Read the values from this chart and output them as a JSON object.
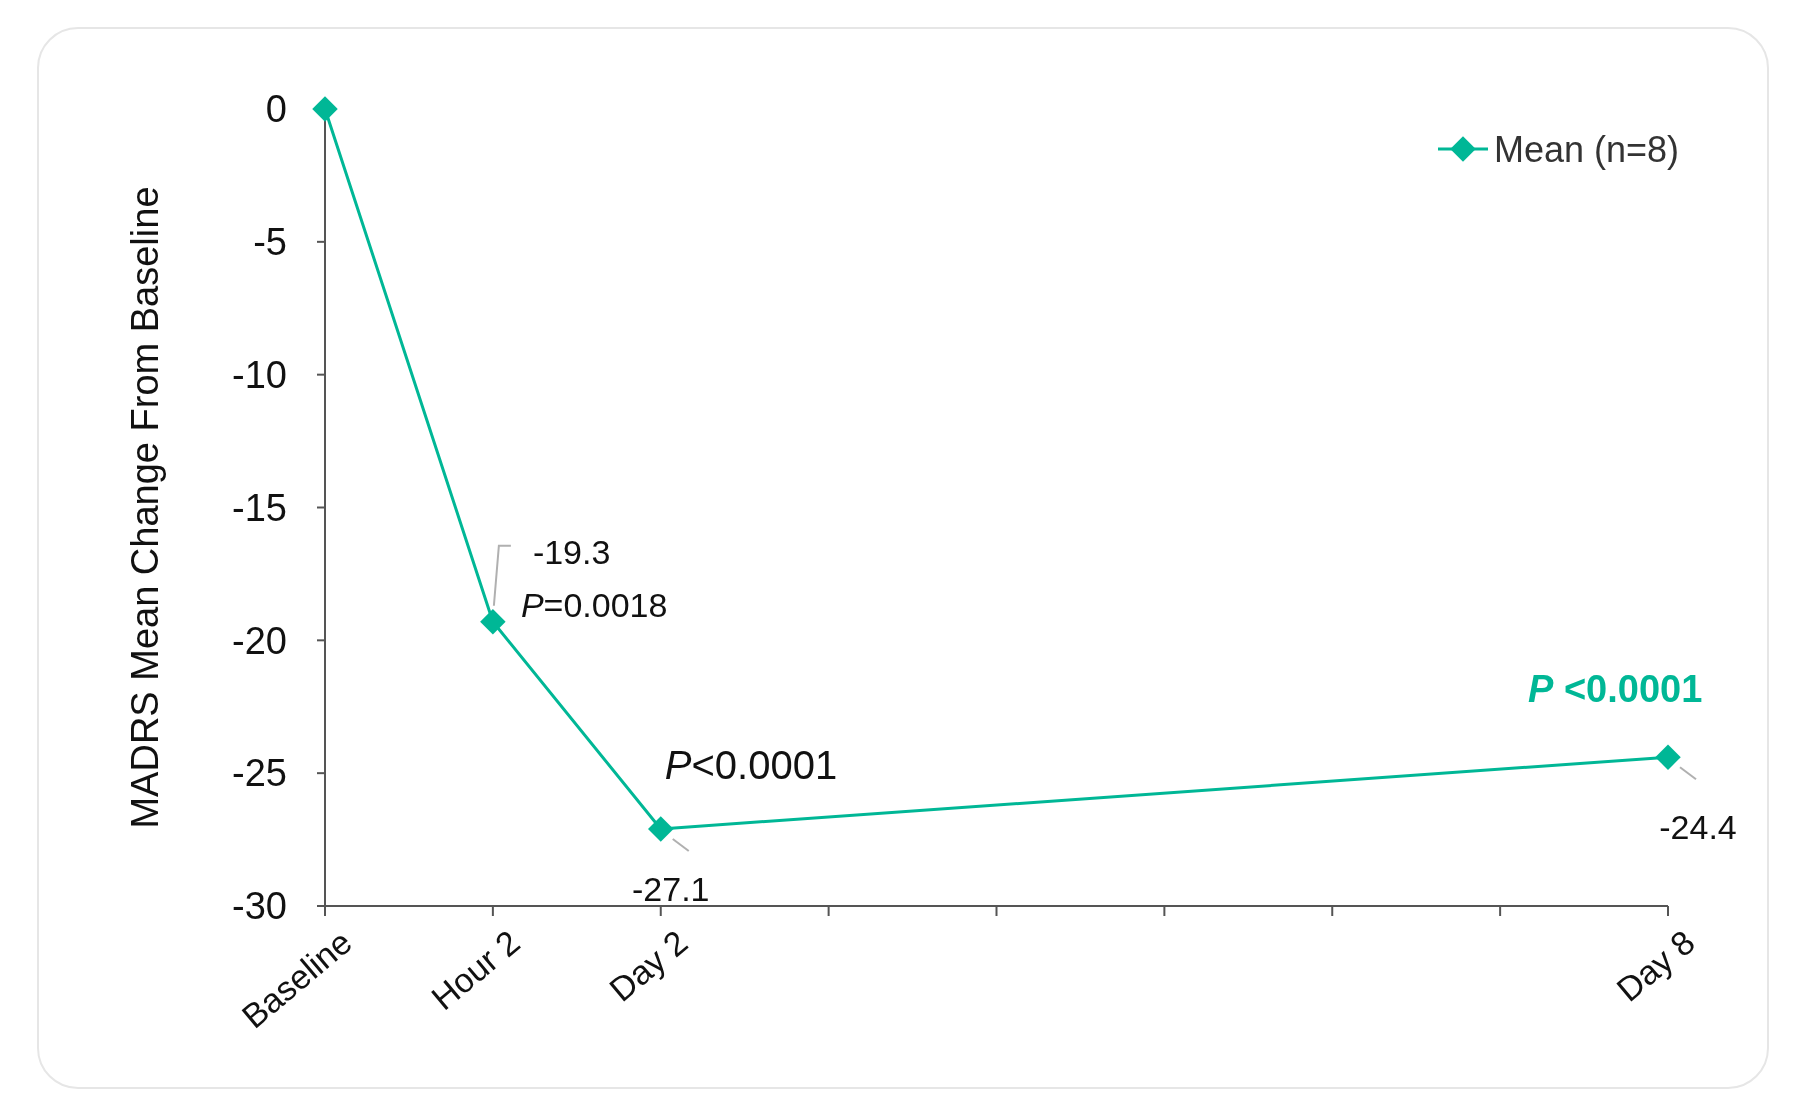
{
  "chart_data": {
    "type": "line",
    "ylabel": "MADRS Mean Change From Baseline",
    "categories": [
      "Baseline",
      "Hour 2",
      "Day 2",
      null,
      null,
      null,
      null,
      null,
      "Day 8"
    ],
    "series": [
      {
        "name": "Mean (n=8)",
        "color": "#00b796",
        "values": [
          0,
          -19.3,
          -27.1,
          null,
          null,
          null,
          null,
          null,
          -24.4
        ],
        "value_labels": [
          null,
          "-19.3",
          "-27.1",
          null,
          null,
          null,
          null,
          null,
          "-24.4"
        ]
      }
    ],
    "ylim": [
      -30,
      0
    ],
    "yticks": [
      0,
      -5,
      -10,
      -15,
      -20,
      -25,
      -30
    ],
    "annotations": [
      "P=0.0018",
      "P<0.0001",
      "P <0.0001"
    ],
    "grid": false,
    "legend": "top right",
    "marker": "diamond",
    "line_style": "solid"
  }
}
